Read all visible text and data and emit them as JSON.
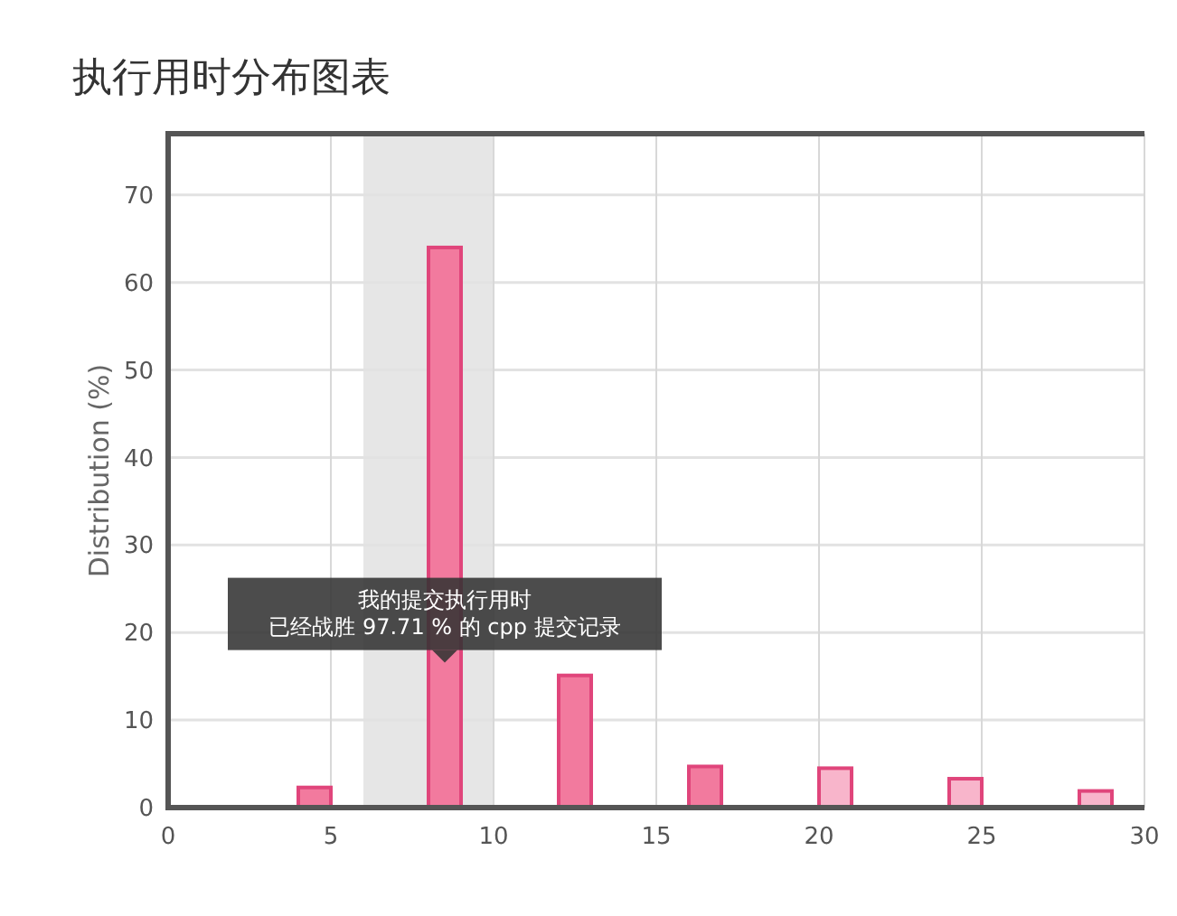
{
  "chart_data": {
    "type": "bar",
    "title": "执行用时分布图表",
    "ylabel": "Distribution (%)",
    "x": [
      4.5,
      8.5,
      12.5,
      16.5,
      20.5,
      24.5,
      28.5
    ],
    "values": [
      2.3,
      64,
      15.1,
      4.7,
      4.5,
      3.3,
      1.9
    ],
    "colors": [
      "#f27a9e",
      "#f27a9e",
      "#f27a9e",
      "#f27a9e",
      "#f8b5cb",
      "#f8b5cb",
      "#f8b5cb"
    ],
    "xlim": [
      0,
      30
    ],
    "xticks": [
      0,
      5,
      10,
      15,
      20,
      25,
      30
    ],
    "ylim": [
      0,
      77
    ],
    "yticks": [
      0,
      10,
      20,
      30,
      40,
      50,
      60,
      70
    ],
    "grid": true,
    "bands": [
      {
        "axis": "x",
        "from": 6,
        "to": 10,
        "color": "#e6e6e6"
      }
    ],
    "annotations": [
      "我的提交执行用时",
      "已经战胜 97.71 % 的 cpp 提交记录"
    ]
  }
}
